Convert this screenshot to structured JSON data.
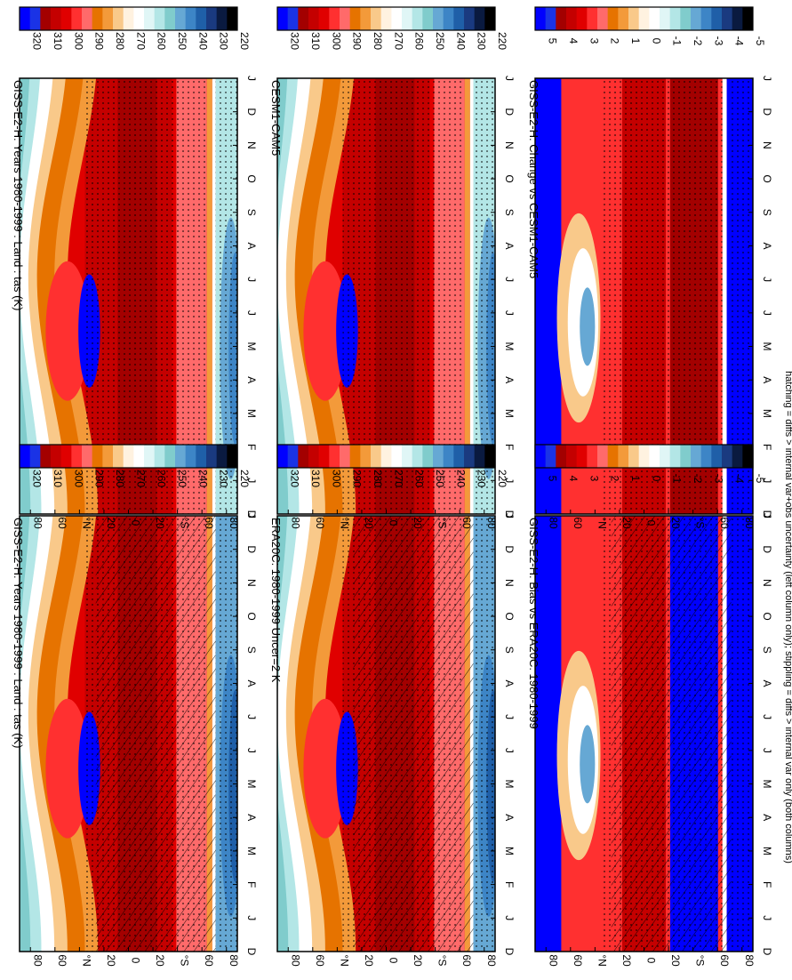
{
  "figure": {
    "footnote": "hatching = diffs > internal var+obs uncertainty (left column only); stippling = diffs > internal var only (both columns)"
  },
  "colorbars": {
    "absolute": {
      "labels": [
        "320",
        "310",
        "300",
        "290",
        "280",
        "270",
        "260",
        "250",
        "240",
        "230",
        "220"
      ],
      "colors": [
        "#0000ff",
        "#1a33e6",
        "#a30000",
        "#c40000",
        "#e00000",
        "#ff3030",
        "#ff6a6a",
        "#e67300",
        "#f39a3a",
        "#f9c98a",
        "#fff2e0",
        "#ffffff",
        "#e0f6f6",
        "#b3e6e6",
        "#80cccc",
        "#66a8d4",
        "#3d85c6",
        "#1f5fa8",
        "#1a3a80",
        "#0a1a40",
        "#000000"
      ]
    },
    "difference": {
      "labels": [
        "5",
        "4",
        "3",
        "2",
        "1",
        "0",
        "-1",
        "-2",
        "-3",
        "-4",
        "-5"
      ],
      "colors": [
        "#0000ff",
        "#1a33e6",
        "#a30000",
        "#c40000",
        "#e00000",
        "#ff3030",
        "#ff6a6a",
        "#e67300",
        "#f39a3a",
        "#f9c98a",
        "#fff2e0",
        "#ffffff",
        "#e0f6f6",
        "#b3e6e6",
        "#80cccc",
        "#66a8d4",
        "#3d85c6",
        "#1f5fa8",
        "#1a3a80",
        "#0a1a40",
        "#000000"
      ]
    }
  },
  "chart_data": [
    {
      "type": "heatmap",
      "title": "GISS-E2-H: Years 1980-1999 : Land : tas (K)",
      "x_ticks": [
        "D",
        "J",
        "F",
        "M",
        "A",
        "M",
        "J",
        "J",
        "A",
        "S",
        "O",
        "N",
        "D",
        "J"
      ],
      "y_ticks": [
        "80",
        "60",
        "°N",
        "20",
        "0",
        "20",
        "°S",
        "60",
        "80"
      ],
      "colorbar": "absolute",
      "hatching": true,
      "stippling": true,
      "column": "left",
      "row": 1
    },
    {
      "type": "heatmap",
      "title": "GISS-E2-H: Years 1980-1999 : Land : tas (K)",
      "x_ticks": [
        "D",
        "J",
        "F",
        "M",
        "A",
        "M",
        "J",
        "J",
        "A",
        "S",
        "O",
        "N",
        "D",
        "J"
      ],
      "y_ticks": [
        "80",
        "60",
        "°N",
        "20",
        "0",
        "20",
        "°S",
        "60",
        "80"
      ],
      "colorbar": "absolute",
      "hatching": false,
      "stippling": true,
      "column": "right",
      "row": 1
    },
    {
      "type": "heatmap",
      "title": "ERA20C: 1980-1999 Uncer=2 K",
      "x_ticks": [
        "D",
        "J",
        "F",
        "M",
        "A",
        "M",
        "J",
        "J",
        "A",
        "S",
        "O",
        "N",
        "D",
        "J"
      ],
      "y_ticks": [
        "80",
        "60",
        "°N",
        "20",
        "0",
        "20",
        "°S",
        "60",
        "80"
      ],
      "colorbar": "absolute",
      "hatching": true,
      "stippling": true,
      "column": "left",
      "row": 2
    },
    {
      "type": "heatmap",
      "title": "CESM1-CAM5",
      "x_ticks": [
        "D",
        "J",
        "F",
        "M",
        "A",
        "M",
        "J",
        "J",
        "A",
        "S",
        "O",
        "N",
        "D",
        "J"
      ],
      "y_ticks": [
        "80",
        "60",
        "°N",
        "20",
        "0",
        "20",
        "°S",
        "60",
        "80"
      ],
      "colorbar": "absolute",
      "hatching": false,
      "stippling": true,
      "column": "right",
      "row": 2
    },
    {
      "type": "heatmap",
      "title": "GISS-E2-H: Bias vs ERA20C: 1980-1999",
      "x_ticks": [
        "D",
        "J",
        "F",
        "M",
        "A",
        "M",
        "J",
        "J",
        "A",
        "S",
        "O",
        "N",
        "D",
        "J"
      ],
      "y_ticks": [
        "80",
        "60",
        "°N",
        "20",
        "0",
        "20",
        "°S",
        "60",
        "80"
      ],
      "colorbar": "difference",
      "hatching": true,
      "stippling": true,
      "column": "left",
      "row": 3
    },
    {
      "type": "heatmap",
      "title": "GISS-E2-H: Change vs CESM1-CAM5",
      "x_ticks": [
        "D",
        "J",
        "F",
        "M",
        "A",
        "M",
        "J",
        "J",
        "A",
        "S",
        "O",
        "N",
        "D",
        "J"
      ],
      "y_ticks": [
        "80",
        "60",
        "°N",
        "20",
        "0",
        "20",
        "°S",
        "60",
        "80"
      ],
      "colorbar": "difference",
      "hatching": false,
      "stippling": true,
      "column": "right",
      "row": 3
    }
  ]
}
